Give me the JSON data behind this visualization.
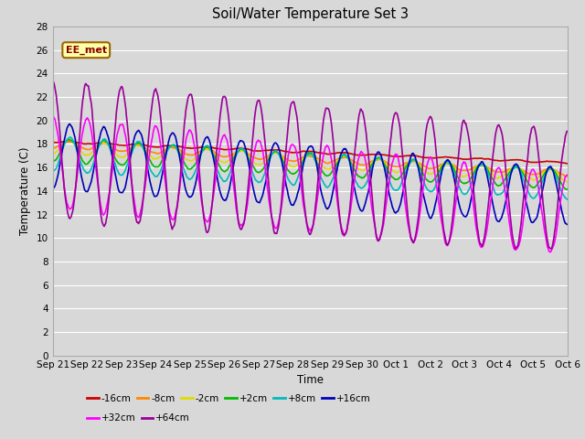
{
  "title": "Soil/Water Temperature Set 3",
  "xlabel": "Time",
  "ylabel": "Temperature (C)",
  "ylim": [
    0,
    28
  ],
  "yticks": [
    0,
    2,
    4,
    6,
    8,
    10,
    12,
    14,
    16,
    18,
    20,
    22,
    24,
    26,
    28
  ],
  "x_labels": [
    "Sep 21",
    "Sep 22",
    "Sep 23",
    "Sep 24",
    "Sep 25",
    "Sep 26",
    "Sep 27",
    "Sep 28",
    "Sep 29",
    "Sep 30",
    "Oct 1",
    "Oct 2",
    "Oct 3",
    "Oct 4",
    "Oct 5",
    "Oct 6"
  ],
  "annotation": "EE_met",
  "series": [
    {
      "label": "-16cm",
      "color": "#cc0000",
      "lw": 1.2
    },
    {
      "label": "-8cm",
      "color": "#ff8800",
      "lw": 1.2
    },
    {
      "label": "-2cm",
      "color": "#dddd00",
      "lw": 1.2
    },
    {
      "label": "+2cm",
      "color": "#00bb00",
      "lw": 1.2
    },
    {
      "label": "+8cm",
      "color": "#00bbbb",
      "lw": 1.2
    },
    {
      "label": "+16cm",
      "color": "#0000bb",
      "lw": 1.2
    },
    {
      "label": "+32cm",
      "color": "#ff00ff",
      "lw": 1.2
    },
    {
      "label": "+64cm",
      "color": "#990099",
      "lw": 1.2
    }
  ],
  "fig_bg": "#d8d8d8",
  "plot_bg": "#d8d8d8",
  "grid_color": "#ffffff"
}
